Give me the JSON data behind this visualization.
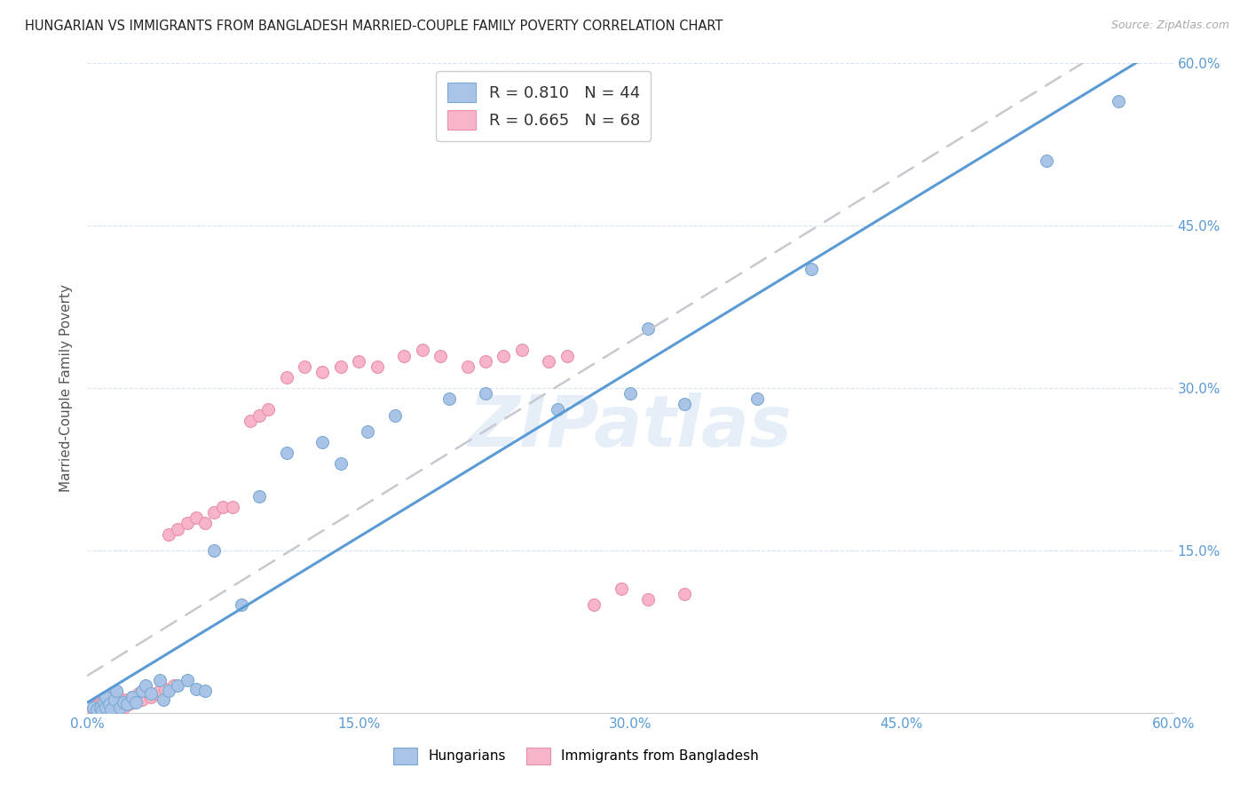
{
  "title": "HUNGARIAN VS IMMIGRANTS FROM BANGLADESH MARRIED-COUPLE FAMILY POVERTY CORRELATION CHART",
  "source": "Source: ZipAtlas.com",
  "ylabel": "Married-Couple Family Poverty",
  "xlim": [
    0.0,
    0.6
  ],
  "ylim": [
    0.0,
    0.6
  ],
  "xtick_vals": [
    0.0,
    0.15,
    0.3,
    0.45,
    0.6
  ],
  "xtick_labels": [
    "0.0%",
    "15.0%",
    "30.0%",
    "45.0%",
    "60.0%"
  ],
  "ytick_vals": [
    0.15,
    0.3,
    0.45,
    0.6
  ],
  "ytick_labels": [
    "15.0%",
    "30.0%",
    "45.0%",
    "60.0%"
  ],
  "legend_label1": "Hungarians",
  "legend_label2": "Immigrants from Bangladesh",
  "R1": 0.81,
  "N1": 44,
  "R2": 0.665,
  "N2": 68,
  "color1": "#aac4e8",
  "color2": "#f8b4c8",
  "line_color1": "#5b9bd5",
  "line_color2": "#f0a0b8",
  "tick_color": "#5b9bd5",
  "watermark": "ZIPatlas",
  "background_color": "#ffffff",
  "grid_color": "#d8e4f0",
  "blue_x": [
    0.003,
    0.005,
    0.007,
    0.008,
    0.009,
    0.01,
    0.01,
    0.012,
    0.013,
    0.015,
    0.016,
    0.018,
    0.02,
    0.022,
    0.025,
    0.027,
    0.03,
    0.032,
    0.035,
    0.04,
    0.042,
    0.045,
    0.05,
    0.055,
    0.06,
    0.065,
    0.07,
    0.085,
    0.095,
    0.11,
    0.13,
    0.14,
    0.155,
    0.17,
    0.2,
    0.22,
    0.26,
    0.3,
    0.31,
    0.33,
    0.37,
    0.4,
    0.53,
    0.57
  ],
  "blue_y": [
    0.005,
    0.003,
    0.005,
    0.002,
    0.01,
    0.005,
    0.015,
    0.008,
    0.003,
    0.012,
    0.02,
    0.005,
    0.01,
    0.008,
    0.015,
    0.01,
    0.02,
    0.025,
    0.018,
    0.03,
    0.012,
    0.02,
    0.025,
    0.03,
    0.022,
    0.02,
    0.15,
    0.1,
    0.2,
    0.24,
    0.25,
    0.23,
    0.26,
    0.275,
    0.29,
    0.295,
    0.28,
    0.295,
    0.355,
    0.285,
    0.29,
    0.41,
    0.51,
    0.565
  ],
  "pink_x": [
    0.003,
    0.004,
    0.005,
    0.005,
    0.006,
    0.006,
    0.007,
    0.007,
    0.008,
    0.008,
    0.009,
    0.01,
    0.01,
    0.011,
    0.012,
    0.012,
    0.013,
    0.014,
    0.015,
    0.015,
    0.016,
    0.017,
    0.018,
    0.019,
    0.02,
    0.021,
    0.022,
    0.023,
    0.025,
    0.026,
    0.028,
    0.03,
    0.032,
    0.035,
    0.038,
    0.04,
    0.043,
    0.045,
    0.048,
    0.05,
    0.055,
    0.06,
    0.065,
    0.07,
    0.075,
    0.08,
    0.09,
    0.095,
    0.1,
    0.11,
    0.12,
    0.13,
    0.14,
    0.15,
    0.16,
    0.175,
    0.185,
    0.195,
    0.21,
    0.22,
    0.23,
    0.24,
    0.255,
    0.265,
    0.28,
    0.295,
    0.31,
    0.33
  ],
  "pink_y": [
    0.003,
    0.005,
    0.005,
    0.007,
    0.005,
    0.008,
    0.005,
    0.01,
    0.005,
    0.01,
    0.007,
    0.005,
    0.012,
    0.008,
    0.005,
    0.015,
    0.01,
    0.008,
    0.005,
    0.013,
    0.01,
    0.015,
    0.008,
    0.012,
    0.005,
    0.01,
    0.012,
    0.008,
    0.015,
    0.01,
    0.018,
    0.012,
    0.02,
    0.015,
    0.018,
    0.02,
    0.022,
    0.165,
    0.025,
    0.17,
    0.175,
    0.18,
    0.175,
    0.185,
    0.19,
    0.19,
    0.27,
    0.275,
    0.28,
    0.31,
    0.32,
    0.315,
    0.32,
    0.325,
    0.32,
    0.33,
    0.335,
    0.33,
    0.32,
    0.325,
    0.33,
    0.335,
    0.325,
    0.33,
    0.1,
    0.115,
    0.105,
    0.11
  ],
  "blue_line_x": [
    0.0,
    0.6
  ],
  "blue_line_y": [
    0.0,
    0.595
  ],
  "pink_line_x": [
    0.04,
    0.37
  ],
  "pink_line_y": [
    0.04,
    0.34
  ]
}
